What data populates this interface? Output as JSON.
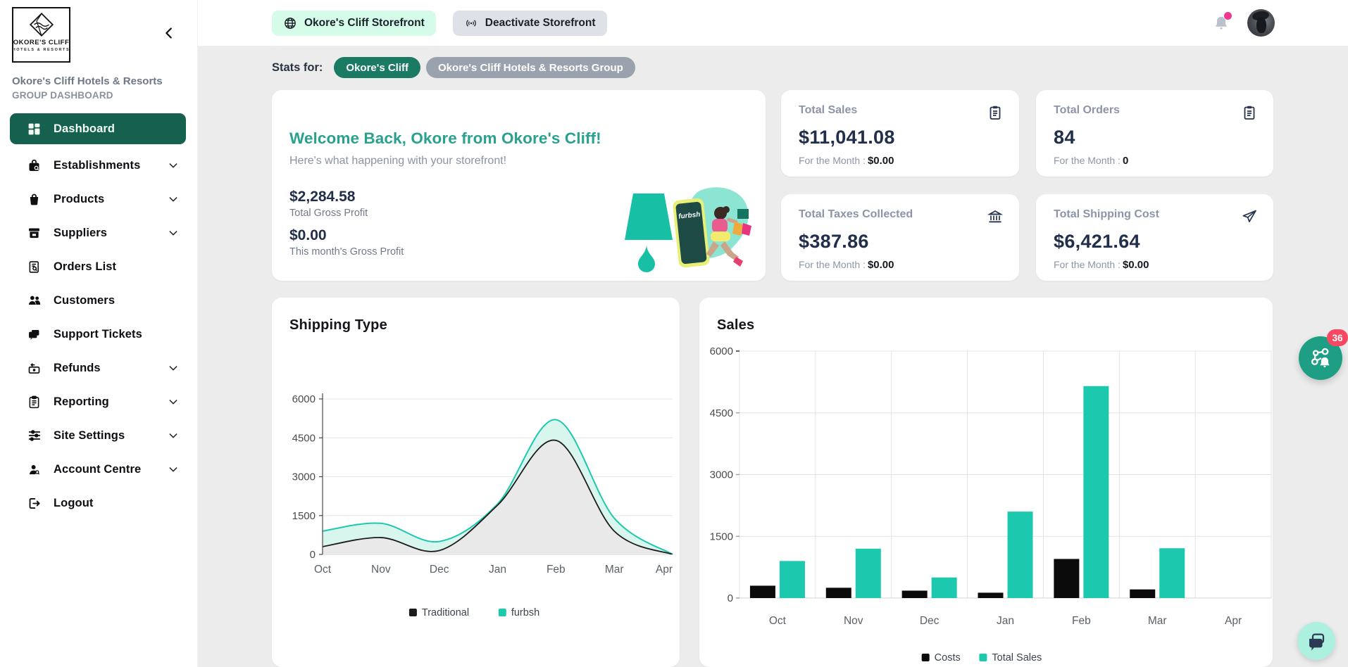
{
  "brand": {
    "logo_line1": "OKORE'S CLIFF",
    "logo_line2": "HOTELS & RESORTS",
    "org_name": "Okore's Cliff Hotels & Resorts",
    "org_subtitle": "GROUP DASHBOARD"
  },
  "sidebar": {
    "items": [
      {
        "label": "Dashboard",
        "icon": "dashboard-icon",
        "active": true,
        "chevron": false
      },
      {
        "label": "Establishments",
        "icon": "establishments-icon",
        "active": false,
        "chevron": true
      },
      {
        "label": "Products",
        "icon": "products-icon",
        "active": false,
        "chevron": true
      },
      {
        "label": "Suppliers",
        "icon": "suppliers-icon",
        "active": false,
        "chevron": true
      },
      {
        "label": "Orders List",
        "icon": "orders-icon",
        "active": false,
        "chevron": false
      },
      {
        "label": "Customers",
        "icon": "customers-icon",
        "active": false,
        "chevron": false
      },
      {
        "label": "Support Tickets",
        "icon": "support-icon",
        "active": false,
        "chevron": false
      },
      {
        "label": "Refunds",
        "icon": "refunds-icon",
        "active": false,
        "chevron": true
      },
      {
        "label": "Reporting",
        "icon": "reporting-icon",
        "active": false,
        "chevron": true
      },
      {
        "label": "Site Settings",
        "icon": "site-settings-icon",
        "active": false,
        "chevron": true
      },
      {
        "label": "Account Centre",
        "icon": "account-icon",
        "active": false,
        "chevron": true
      },
      {
        "label": "Logout",
        "icon": "logout-icon",
        "active": false,
        "chevron": false
      }
    ]
  },
  "topbar": {
    "storefront_button": "Okore's Cliff Storefront",
    "deactivate_button": "Deactivate Storefront"
  },
  "stats_for": {
    "label": "Stats for:",
    "pills": [
      {
        "label": "Okore's Cliff",
        "active": true
      },
      {
        "label": "Okore's Cliff Hotels & Resorts Group",
        "active": false
      }
    ]
  },
  "welcome": {
    "title": "Welcome Back, Okore from Okore's Cliff!",
    "subtitle": "Here's what happening with your storefront!",
    "total_gross_profit": "$2,284.58",
    "total_gross_profit_label": "Total Gross Profit",
    "month_gross_profit": "$0.00",
    "month_gross_profit_label": "This month's Gross Profit",
    "illustration_brand": "furbsh"
  },
  "stat_cards": [
    {
      "label": "Total Sales",
      "value": "$11,041.08",
      "month_label": "For the Month :",
      "month_value": "$0.00",
      "icon": "clipboard-icon"
    },
    {
      "label": "Total Orders",
      "value": "84",
      "month_label": "For the Month :",
      "month_value": "0",
      "icon": "clipboard-icon"
    },
    {
      "label": "Total Taxes Collected",
      "value": "$387.86",
      "month_label": "For the Month :",
      "month_value": "$0.00",
      "icon": "bank-icon"
    },
    {
      "label": "Total Shipping Cost",
      "value": "$6,421.64",
      "month_label": "For the Month :",
      "month_value": "$0.00",
      "icon": "plane-icon"
    }
  ],
  "chart_data": [
    {
      "type": "area",
      "title": "Shipping Type",
      "categories": [
        "Oct",
        "Nov",
        "Dec",
        "Jan",
        "Feb",
        "Mar",
        "Apr"
      ],
      "series": [
        {
          "name": "furbsh",
          "color": "#1DC9AE",
          "fill": "#D8F5EE",
          "values": [
            900,
            1200,
            500,
            1950,
            5200,
            1400,
            0
          ]
        },
        {
          "name": "Traditional",
          "color": "#1c1c1c",
          "fill": "#E9E9E9",
          "values": [
            300,
            650,
            150,
            1900,
            4400,
            900,
            0
          ]
        }
      ],
      "legend_order": [
        "Traditional",
        "furbsh"
      ],
      "ylim": [
        0,
        6000
      ],
      "yticks": [
        0,
        1500,
        3000,
        4500,
        6000
      ],
      "grid": "horizontal",
      "legend_position": "bottom"
    },
    {
      "type": "bar",
      "title": "Sales",
      "categories": [
        "Oct",
        "Nov",
        "Dec",
        "Jan",
        "Feb",
        "Mar",
        "Apr"
      ],
      "series": [
        {
          "name": "Costs",
          "color": "#0b0b0b",
          "values": [
            300,
            250,
            180,
            130,
            950,
            210,
            0
          ]
        },
        {
          "name": "Total Sales",
          "color": "#1DC9AE",
          "values": [
            900,
            1200,
            500,
            2100,
            5150,
            1210,
            0
          ]
        }
      ],
      "ylim": [
        0,
        6000
      ],
      "yticks": [
        0,
        1500,
        3000,
        4500,
        6000
      ],
      "grid": "both",
      "legend_position": "bottom"
    }
  ],
  "floating": {
    "notifications_badge": "36"
  },
  "colors": {
    "accent_teal": "#1DC9AE",
    "active_nav": "#15604F",
    "pill_teal": "#1A7A64",
    "pill_gray": "#9AA2AD",
    "badge_pink": "#F94862",
    "bell_dot_pink": "#F1388F",
    "mint_button": "#D5FBE9",
    "gray_button": "#DEE2E8",
    "value_navy": "#222F4B"
  }
}
